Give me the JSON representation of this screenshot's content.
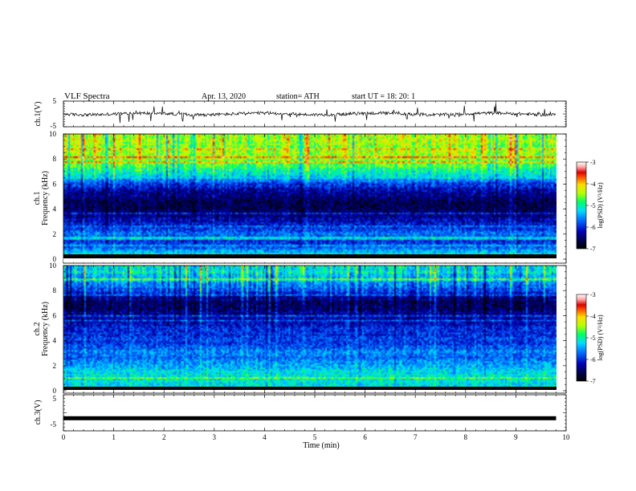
{
  "header": {
    "title": "VLF  Spectra",
    "date": "Apr. 13, 2020",
    "station": "station= ATH",
    "start_ut": "start  UT  =    18: 20: 1"
  },
  "chart_data": [
    {
      "type": "line",
      "panel": "ch1-waveform",
      "ylabel": "ch.1(V)",
      "ylim": [
        -5,
        5
      ],
      "yticks": [
        "5",
        "-5"
      ],
      "baseline_value": 0,
      "color": "#000000"
    },
    {
      "type": "heatmap",
      "panel": "ch1-spectrogram",
      "ylabel": "ch.1\nFrequency (kHz)",
      "ylim": [
        0,
        10
      ],
      "yticks": [
        "0",
        "2",
        "4",
        "6",
        "8",
        "10"
      ],
      "xlim": [
        0,
        9.8
      ],
      "profile_khz": [
        0,
        0.5,
        1,
        1.5,
        2,
        2.5,
        3,
        3.5,
        4,
        4.5,
        5,
        5.5,
        6,
        6.5,
        7,
        7.5,
        8,
        8.5,
        9,
        9.5,
        10
      ],
      "profile_log_psd": [
        -5.2,
        -5.3,
        -5.9,
        -6.0,
        -5.7,
        -6.0,
        -6.2,
        -6.4,
        -6.6,
        -6.6,
        -6.4,
        -6.2,
        -5.9,
        -5.4,
        -5.0,
        -4.7,
        -4.5,
        -4.4,
        -4.5,
        -4.4,
        -4.4
      ],
      "colorbar": {
        "label": "log(PSD) (V²/Hz)",
        "range": [
          -7,
          -3
        ],
        "ticks": [
          "-3",
          "-4",
          "-5",
          "-6",
          "-7"
        ]
      }
    },
    {
      "type": "heatmap",
      "panel": "ch2-spectrogram",
      "ylabel": "ch.2\nFrequency (kHz)",
      "ylim": [
        0,
        10
      ],
      "yticks": [
        "0",
        "2",
        "4",
        "6",
        "8",
        "10"
      ],
      "xlim": [
        0,
        9.8
      ],
      "profile_khz": [
        0,
        0.5,
        1,
        1.5,
        2,
        2.5,
        3,
        3.5,
        4,
        4.5,
        5,
        5.5,
        6,
        6.5,
        7,
        7.5,
        8,
        8.5,
        9,
        9.5,
        10
      ],
      "profile_log_psd": [
        -5.3,
        -5.2,
        -5.1,
        -5.3,
        -5.5,
        -5.7,
        -5.6,
        -5.8,
        -5.9,
        -6.0,
        -6.0,
        -6.2,
        -6.3,
        -6.5,
        -6.6,
        -6.3,
        -5.9,
        -5.6,
        -5.4,
        -5.3,
        -5.2
      ],
      "colorbar": {
        "label": "log(PSD) (V²/Hz)",
        "range": [
          -7,
          -3
        ],
        "ticks": [
          "-3",
          "-4",
          "-5",
          "-6",
          "-7"
        ]
      }
    },
    {
      "type": "line",
      "panel": "ch3-waveform",
      "ylabel": "ch.3(V)",
      "ylim": [
        -5,
        5
      ],
      "yticks": [
        "5",
        "-5"
      ],
      "baseline_value": -1.5,
      "color": "#000000"
    }
  ],
  "x_axis": {
    "label": "Time  (min)",
    "ticks": [
      "0",
      "1",
      "2",
      "3",
      "4",
      "5",
      "6",
      "7",
      "8",
      "9",
      "10"
    ],
    "range": [
      0,
      10
    ]
  },
  "colors": {
    "colormap": [
      "#000000",
      "#00003c",
      "#0000b4",
      "#0064ff",
      "#00dcff",
      "#00ff64",
      "#b4ff00",
      "#ffdc00",
      "#ff5a00",
      "#dc0000",
      "#ffa0a0",
      "#ffffff"
    ]
  }
}
